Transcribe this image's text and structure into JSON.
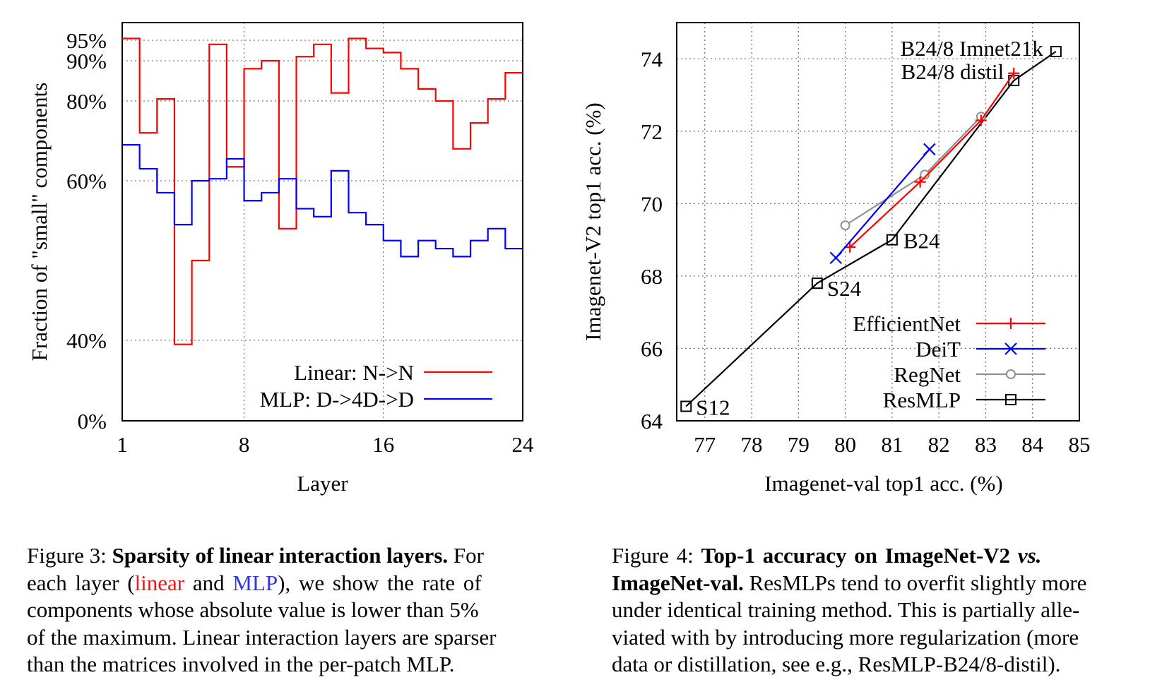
{
  "chart_data": [
    {
      "type": "line",
      "step": true,
      "xlabel": "Layer",
      "ylabel": "Fraction of \"small\" components",
      "x_ticks": [
        1,
        8,
        16,
        24
      ],
      "y_ticks": [
        0,
        40,
        60,
        80,
        90,
        95
      ],
      "y_tick_labels": [
        "0%",
        "40%",
        "60%",
        "80%",
        "90%",
        "95%"
      ],
      "y_scale": "nonlinear (spacing follows tick positions)",
      "grid": true,
      "legend_position": "bottom-right",
      "series": [
        {
          "name": "Linear: N->N",
          "color": "#ff0000",
          "x": [
            1,
            2,
            3,
            4,
            5,
            6,
            7,
            8,
            9,
            10,
            11,
            12,
            13,
            14,
            15,
            16,
            17,
            18,
            19,
            20,
            21,
            22,
            23,
            24
          ],
          "values": [
            95.5,
            72,
            80.5,
            38,
            50,
            94,
            63.5,
            88,
            90,
            54,
            91,
            94,
            82,
            95.5,
            93,
            92,
            88,
            83,
            80,
            68,
            74.5,
            80.5,
            87,
            87
          ]
        },
        {
          "name": "MLP: D->4D->D",
          "color": "#0000ff",
          "x": [
            1,
            2,
            3,
            4,
            5,
            6,
            7,
            8,
            9,
            10,
            11,
            12,
            13,
            14,
            15,
            16,
            17,
            18,
            19,
            20,
            21,
            22,
            23,
            24
          ],
          "values": [
            69,
            63,
            58.5,
            54.5,
            60,
            60.5,
            65.5,
            57.5,
            58.5,
            60.5,
            56.5,
            55.5,
            62.5,
            56,
            54.5,
            52.5,
            50.5,
            52.5,
            51.5,
            50.5,
            52.5,
            54,
            51.5,
            51.5
          ]
        }
      ]
    },
    {
      "type": "line",
      "xlabel": "Imagenet-val top1 acc. (%)",
      "ylabel": "Imagenet-V2 top1 acc. (%)",
      "xlim": [
        76.4,
        85
      ],
      "ylim": [
        64,
        75
      ],
      "x_ticks": [
        77,
        78,
        79,
        80,
        81,
        82,
        83,
        84,
        85
      ],
      "y_ticks": [
        64,
        66,
        68,
        70,
        72,
        74
      ],
      "grid": true,
      "legend_position": "bottom-right",
      "series": [
        {
          "name": "EfficientNet",
          "color": "#ff0000",
          "marker": "plus",
          "x": [
            80.1,
            81.6,
            82.9,
            83.6
          ],
          "y": [
            68.8,
            70.6,
            72.3,
            73.6
          ]
        },
        {
          "name": "DeiT",
          "color": "#0000ff",
          "marker": "cross",
          "x": [
            79.8,
            81.8
          ],
          "y": [
            68.5,
            71.5
          ]
        },
        {
          "name": "RegNet",
          "color": "#909090",
          "marker": "circle",
          "x": [
            80.0,
            81.7,
            82.9
          ],
          "y": [
            69.4,
            70.8,
            72.4
          ]
        },
        {
          "name": "ResMLP",
          "color": "#000000",
          "marker": "square",
          "x": [
            76.6,
            79.4,
            81.0,
            83.6,
            84.5
          ],
          "y": [
            64.4,
            67.8,
            69.0,
            73.4,
            74.2
          ]
        }
      ],
      "annotations": [
        {
          "text": "S12",
          "x": 76.6,
          "y": 64.4
        },
        {
          "text": "S24",
          "x": 79.4,
          "y": 67.8
        },
        {
          "text": "B24",
          "x": 81.0,
          "y": 69.0
        },
        {
          "text": "B24/8 distil",
          "x": 83.6,
          "y": 73.4
        },
        {
          "text": "B24/8 Imnet21k",
          "x": 84.5,
          "y": 74.2
        }
      ]
    }
  ],
  "captions": {
    "fig3": {
      "line1_label": "Figure 3: ",
      "line1_bold": "Sparsity of linear interaction layers.",
      "line1_rest": " For",
      "line2_pre": "each layer (",
      "line2_red": "linear",
      "line2_and": " and ",
      "line2_blue": "MLP",
      "line2_post": "), we show the rate of",
      "line3": "components whose absolute value is lower than 5%",
      "line4": "of the maximum. Linear interaction layers are sparser",
      "line5": "than the matrices involved in the per-patch MLP."
    },
    "fig4": {
      "line1_label": "Figure 4:  ",
      "line1_bold": "Top-1 accuracy on ImageNet-V2 ",
      "line1_italic": "vs.",
      "line2_bold": "ImageNet-val.",
      "line2_rest": " ResMLPs tend to overfit slightly more",
      "line3": "under identical training method. This is partially alle-",
      "line4": "viated with by introducing more regularization (more",
      "line5": "data or distillation, see e.g., ResMLP-B24/8-distil)."
    }
  }
}
